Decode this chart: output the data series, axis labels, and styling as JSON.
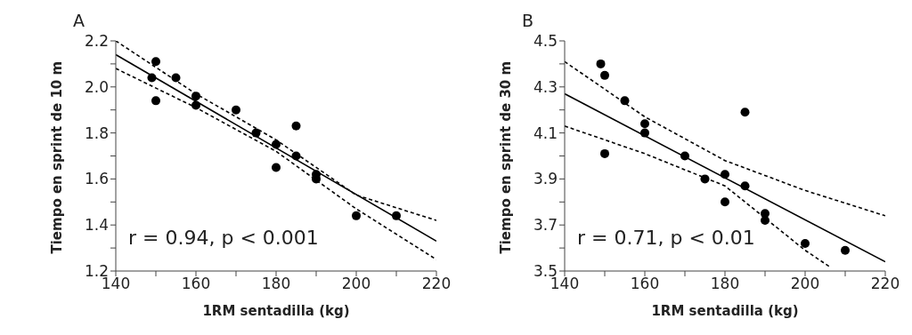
{
  "chart_data": [
    {
      "type": "scatter",
      "title": "A",
      "xlabel": "1RM sentadilla (kg)",
      "ylabel": "Tiempo en sprint de 10 m",
      "annotations": [
        "r = 0.94, p < 0.001"
      ],
      "xlim": [
        140,
        220
      ],
      "ylim": [
        1.2,
        2.2
      ],
      "xticks": [
        140,
        {
          "value": 150,
          "label": null
        },
        160,
        {
          "value": 170,
          "label": null
        },
        180,
        {
          "value": 190,
          "label": null
        },
        200,
        {
          "value": 210,
          "label": null
        },
        220
      ],
      "yticks": [
        1.2,
        {
          "value": 1.3,
          "label": null
        },
        1.4,
        {
          "value": 1.5,
          "label": null
        },
        1.6,
        {
          "value": 1.7,
          "label": null
        },
        1.8,
        {
          "value": 1.9,
          "label": null
        },
        {
          "value": 2,
          "label": "2.0"
        },
        {
          "value": 2.1,
          "label": null
        },
        2.2
      ],
      "grid": false,
      "legend": false,
      "series": [
        {
          "type": "scatter",
          "marker": "circle",
          "color": "#000000",
          "x": [
            149,
            150,
            150,
            155,
            160,
            160,
            170,
            175,
            180,
            180,
            185,
            185,
            190,
            190,
            200,
            210
          ],
          "values": [
            2.04,
            2.11,
            1.94,
            2.04,
            1.96,
            1.92,
            1.9,
            1.8,
            1.75,
            1.65,
            1.83,
            1.7,
            1.62,
            1.6,
            1.44,
            1.44
          ]
        },
        {
          "type": "line",
          "color": "#000000",
          "line_style": "solid",
          "x": [
            140,
            220
          ],
          "values": [
            2.14,
            1.33
          ]
        },
        {
          "type": "line",
          "color": "#000000",
          "line_style": "dashed",
          "x": [
            140,
            160,
            180,
            200,
            220
          ],
          "values": [
            2.2,
            1.97,
            1.77,
            1.53,
            1.42
          ]
        },
        {
          "type": "line",
          "color": "#000000",
          "line_style": "dashed",
          "x": [
            140,
            160,
            180,
            200,
            220
          ],
          "values": [
            2.08,
            1.91,
            1.72,
            1.47,
            1.25
          ]
        }
      ]
    },
    {
      "type": "scatter",
      "title": "B",
      "xlabel": "1RM sentadilla (kg)",
      "ylabel": "Tiempo en sprint de 30 m",
      "annotations": [
        "r = 0.71, p < 0.01"
      ],
      "xlim": [
        140,
        220
      ],
      "ylim": [
        3.5,
        4.5
      ],
      "xticks": [
        140,
        {
          "value": 150,
          "label": null
        },
        160,
        {
          "value": 170,
          "label": null
        },
        180,
        {
          "value": 190,
          "label": null
        },
        200,
        {
          "value": 210,
          "label": null
        },
        220
      ],
      "yticks": [
        3.5,
        {
          "value": 3.6,
          "label": null
        },
        3.7,
        {
          "value": 3.8,
          "label": null
        },
        3.9,
        {
          "value": 4.0,
          "label": null
        },
        4.1,
        {
          "value": 4.2,
          "label": null
        },
        4.3,
        {
          "value": 4.4,
          "label": null
        },
        4.5
      ],
      "grid": false,
      "legend": false,
      "series": [
        {
          "type": "scatter",
          "marker": "circle",
          "color": "#000000",
          "x": [
            149,
            150,
            150,
            155,
            160,
            160,
            170,
            175,
            180,
            180,
            185,
            185,
            190,
            190,
            200,
            210
          ],
          "values": [
            4.4,
            4.35,
            4.01,
            4.24,
            4.14,
            4.1,
            4.0,
            3.9,
            3.92,
            3.8,
            4.19,
            3.87,
            3.75,
            3.72,
            3.62,
            3.59
          ]
        },
        {
          "type": "line",
          "color": "#000000",
          "line_style": "solid",
          "x": [
            140,
            220
          ],
          "values": [
            4.27,
            3.54
          ]
        },
        {
          "type": "line",
          "color": "#000000",
          "line_style": "dashed",
          "x": [
            140,
            160,
            180,
            200,
            220
          ],
          "values": [
            4.41,
            4.17,
            3.98,
            3.85,
            3.74
          ]
        },
        {
          "type": "line",
          "color": "#000000",
          "line_style": "dashed",
          "x": [
            140,
            160,
            180,
            200,
            206
          ],
          "values": [
            4.13,
            4.01,
            3.87,
            3.59,
            3.52
          ]
        }
      ]
    }
  ]
}
